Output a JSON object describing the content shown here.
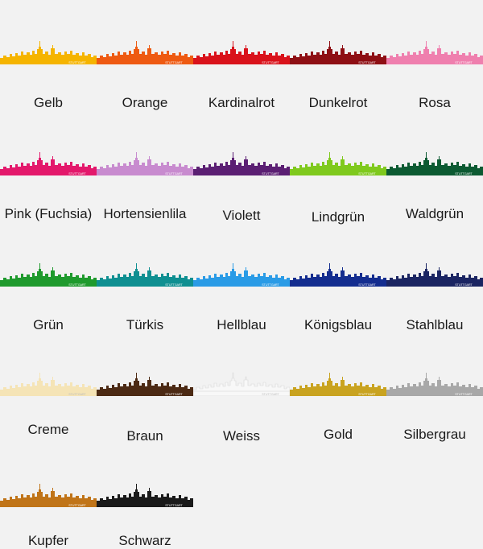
{
  "skyline_city": "STUTTGART",
  "swatches": [
    {
      "label": "Gelb",
      "color": "#f5b400"
    },
    {
      "label": "Orange",
      "color": "#ee5a12"
    },
    {
      "label": "Kardinalrot",
      "color": "#d9121b"
    },
    {
      "label": "Dunkelrot",
      "color": "#8e0f14"
    },
    {
      "label": "Rosa",
      "color": "#ef7fae"
    },
    {
      "label": "Pink (Fuchsia)",
      "color": "#e3186b"
    },
    {
      "label": "Hortensienlila",
      "color": "#c88bcf"
    },
    {
      "label": "Violett",
      "color": "#5b1f73"
    },
    {
      "label": "Lindgrün",
      "color": "#7fc91d"
    },
    {
      "label": "Waldgrün",
      "color": "#0c5a32"
    },
    {
      "label": "Grün",
      "color": "#1f9a2d"
    },
    {
      "label": "Türkis",
      "color": "#0f8f91"
    },
    {
      "label": "Hellblau",
      "color": "#2a9be6"
    },
    {
      "label": "Königsblau",
      "color": "#142d8f"
    },
    {
      "label": "Stahlblau",
      "color": "#1b2562"
    },
    {
      "label": "Creme",
      "color": "#f5e4b6"
    },
    {
      "label": "Braun",
      "color": "#4c2a14"
    },
    {
      "label": "Weiss",
      "color": "#f8f8f8"
    },
    {
      "label": "Gold",
      "color": "#c9a320"
    },
    {
      "label": "Silbergrau",
      "color": "#a8a8a8"
    },
    {
      "label": "Kupfer",
      "color": "#c07418"
    },
    {
      "label": "Schwarz",
      "color": "#1a1a1a"
    }
  ]
}
